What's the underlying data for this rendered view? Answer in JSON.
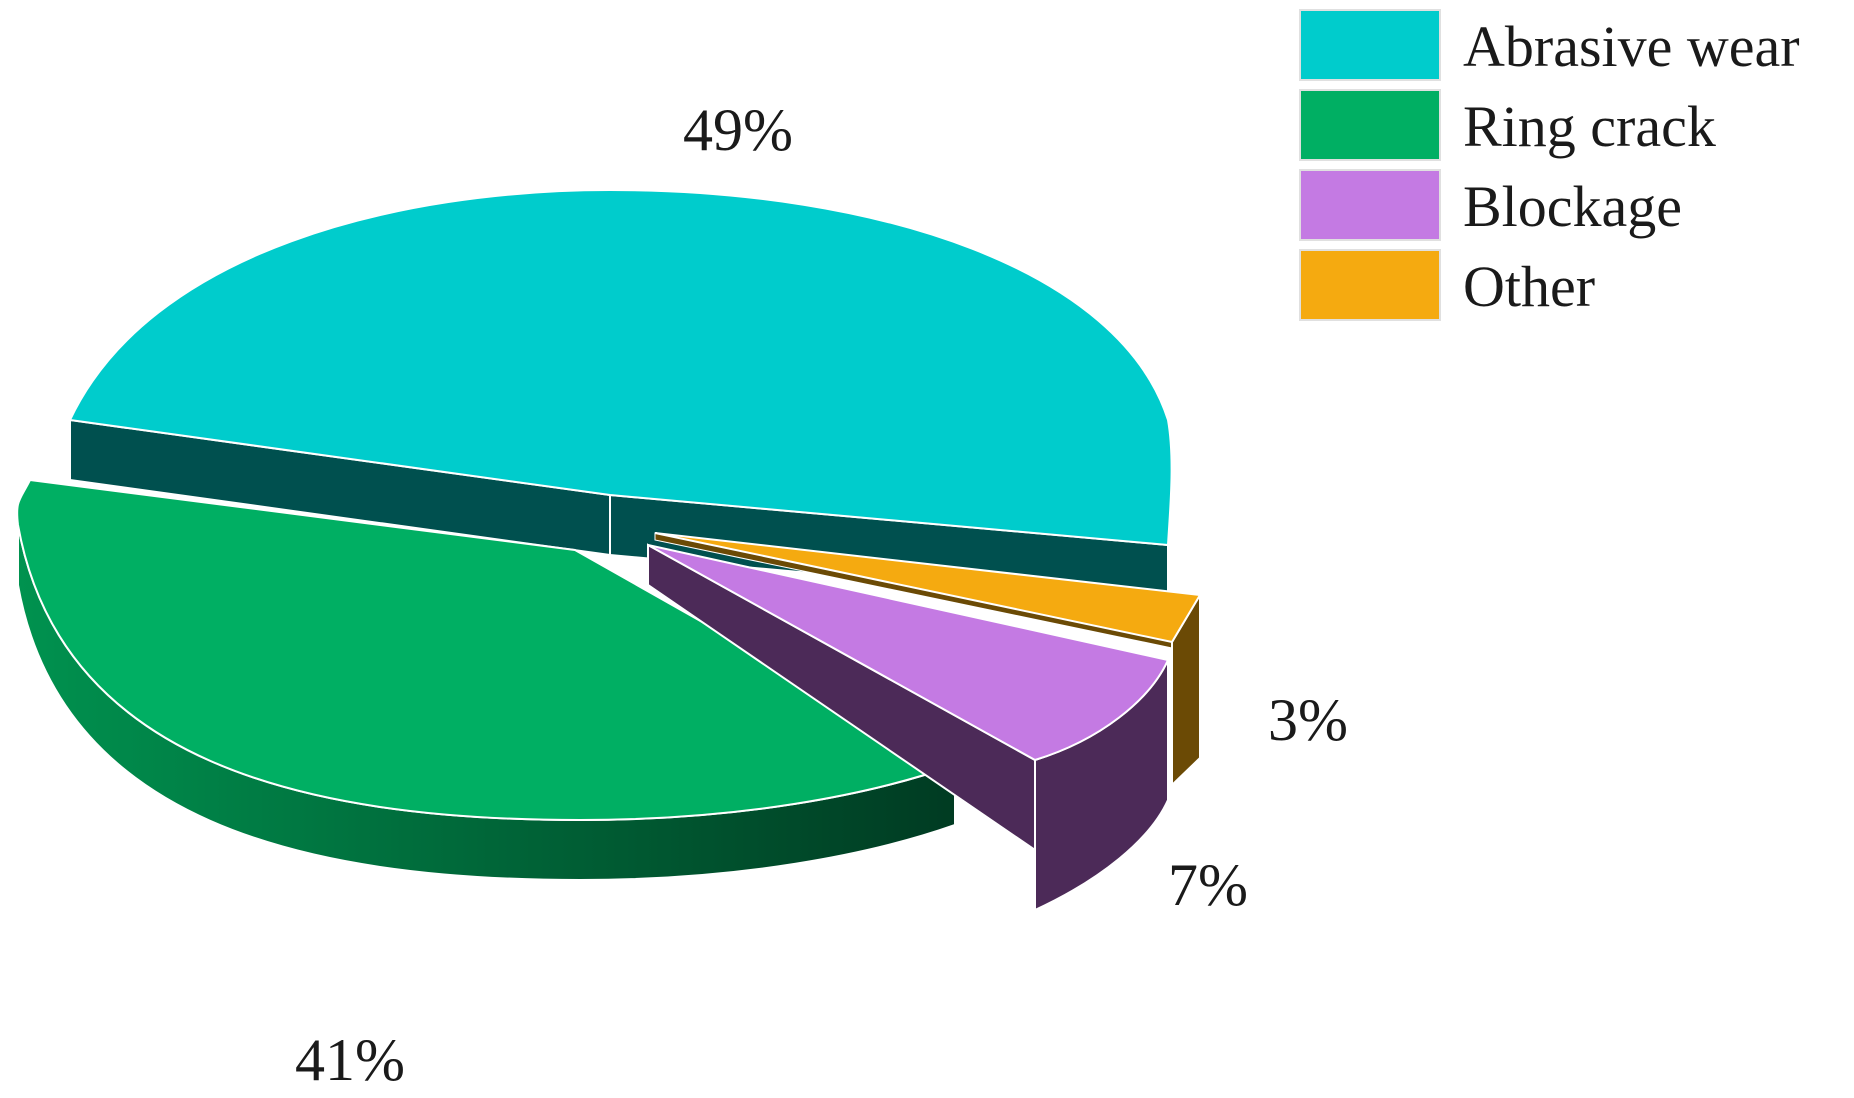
{
  "chart_data": {
    "type": "pie",
    "style": "3d-exploded",
    "slices": [
      {
        "label": "Abrasive wear",
        "value": 49,
        "display": "49%",
        "color": "#00CCCC",
        "side_color": "#00504F"
      },
      {
        "label": "Ring crack",
        "value": 41,
        "display": "41%",
        "color": "#00AF63",
        "side_color": "#006B3E"
      },
      {
        "label": "Blockage",
        "value": 7,
        "display": "7%",
        "color": "#C47AE3",
        "side_color": "#4C2A58"
      },
      {
        "label": "Other",
        "value": 3,
        "display": "3%",
        "color": "#F5AA10",
        "side_color": "#6B4A05"
      }
    ],
    "legend_position": "top-right"
  }
}
